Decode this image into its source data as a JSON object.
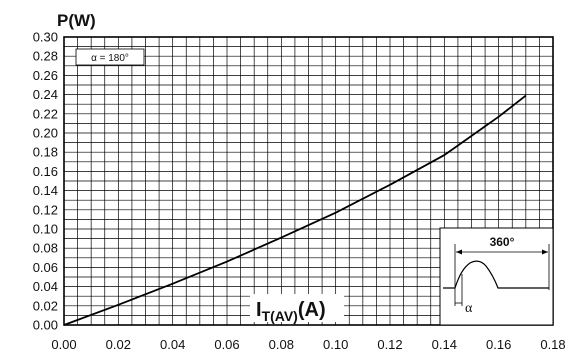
{
  "chart_data": {
    "type": "line",
    "title": "",
    "ylabel": "P(W)",
    "xlabel_main": "I",
    "xlabel_sub": "T(AV)",
    "xlabel_unit": "(A)",
    "xlim": [
      0,
      0.18
    ],
    "ylim": [
      0,
      0.3
    ],
    "x_ticks": [
      "0.00",
      "0.02",
      "0.04",
      "0.06",
      "0.08",
      "0.10",
      "0.12",
      "0.14",
      "0.16",
      "0.18"
    ],
    "y_ticks": [
      "0.00",
      "0.02",
      "0.04",
      "0.06",
      "0.08",
      "0.10",
      "0.12",
      "0.14",
      "0.16",
      "0.18",
      "0.20",
      "0.22",
      "0.24",
      "0.26",
      "0.28",
      "0.30"
    ],
    "grid": true,
    "annotation": "α = 180°",
    "inset": {
      "angle_label": "360°",
      "alpha_label": "α"
    },
    "series": [
      {
        "x": [
          0.0,
          0.02,
          0.04,
          0.06,
          0.08,
          0.1,
          0.12,
          0.14,
          0.16,
          0.17
        ],
        "y": [
          0.0,
          0.021,
          0.043,
          0.066,
          0.091,
          0.117,
          0.146,
          0.177,
          0.217,
          0.239
        ]
      }
    ]
  }
}
